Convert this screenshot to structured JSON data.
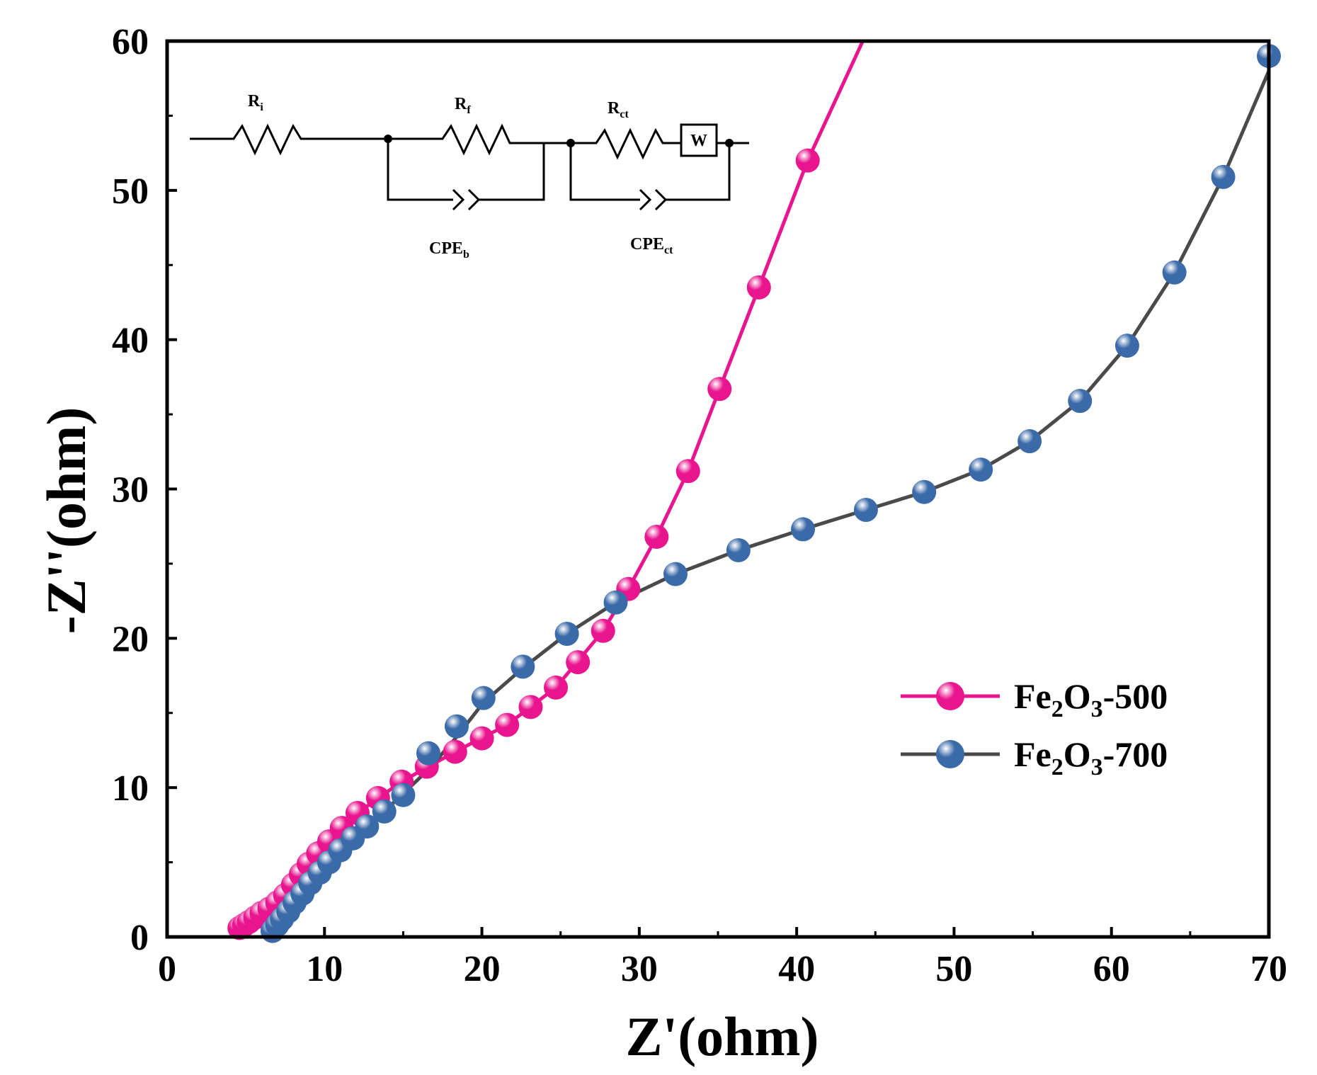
{
  "chart_data": {
    "type": "scatter",
    "title": "",
    "xlabel": "Z'(ohm)",
    "ylabel": "-Z''(ohm)",
    "xlim": [
      0,
      70
    ],
    "ylim": [
      0,
      60
    ],
    "xticks": [
      0,
      10,
      20,
      30,
      40,
      50,
      60,
      70
    ],
    "yticks": [
      0,
      10,
      20,
      30,
      40,
      50,
      60
    ],
    "legend_position": "right-middle",
    "series": [
      {
        "name": "Fe2O3-500",
        "legend_main": "Fe",
        "legend_sub1": "2",
        "legend_mid": "O",
        "legend_sub2": "3",
        "legend_tail": "-500",
        "color": "#e8158f",
        "line_color": "#e8158f",
        "x": [
          4.6,
          4.9,
          5.2,
          5.6,
          6.0,
          6.5,
          7.0,
          7.5,
          8.0,
          8.5,
          9.0,
          9.6,
          10.3,
          11.1,
          12.1,
          13.4,
          14.9,
          16.5,
          18.3,
          20.0,
          21.6,
          23.1,
          24.7,
          26.1,
          27.7,
          29.3,
          31.1,
          33.1,
          35.1,
          37.6,
          40.7
        ],
        "y": [
          0.6,
          0.8,
          1.0,
          1.3,
          1.6,
          1.9,
          2.3,
          2.8,
          3.5,
          4.2,
          4.9,
          5.6,
          6.4,
          7.3,
          8.3,
          9.3,
          10.4,
          11.4,
          12.4,
          13.3,
          14.2,
          15.4,
          16.7,
          18.4,
          20.5,
          23.3,
          26.8,
          31.2,
          36.7,
          43.5,
          52.0
        ],
        "fit_x": [
          4.6,
          5.6,
          7.0,
          8.5,
          10.3,
          12.1,
          14.9,
          18.3,
          21.6,
          24.7,
          27.7,
          29.3,
          31.1,
          33.1,
          35.1,
          37.6,
          40.7,
          44.2
        ],
        "fit_y": [
          0.6,
          1.3,
          2.3,
          4.2,
          6.4,
          8.3,
          10.4,
          12.4,
          14.2,
          16.7,
          20.5,
          23.3,
          26.8,
          31.2,
          36.7,
          43.5,
          52.0,
          60.0
        ]
      },
      {
        "name": "Fe2O3-700",
        "legend_main": "Fe",
        "legend_sub1": "2",
        "legend_mid": "O",
        "legend_sub2": "3",
        "legend_tail": "-700",
        "color": "#3b6aa8",
        "line_color": "#4a4a4a",
        "x": [
          6.7,
          7.0,
          7.3,
          7.7,
          8.1,
          8.6,
          9.1,
          9.7,
          10.3,
          11.0,
          11.8,
          12.7,
          13.8,
          15.0,
          16.6,
          18.4,
          20.1,
          22.6,
          25.4,
          28.5,
          32.3,
          36.3,
          40.4,
          44.4,
          48.1,
          51.7,
          54.8,
          58.0,
          61.0,
          64.0,
          67.1,
          70.0
        ],
        "y": [
          0.4,
          0.8,
          1.2,
          1.7,
          2.3,
          2.9,
          3.6,
          4.3,
          5.0,
          5.8,
          6.6,
          7.4,
          8.4,
          9.5,
          12.3,
          14.1,
          16.0,
          18.1,
          20.3,
          22.4,
          24.3,
          25.9,
          27.3,
          28.6,
          29.8,
          31.3,
          33.2,
          35.9,
          39.6,
          44.5,
          50.9,
          59.0
        ],
        "fit_x": [
          6.7,
          7.7,
          9.1,
          10.3,
          11.8,
          13.8,
          16.6,
          18.4,
          20.1,
          22.6,
          25.4,
          28.5,
          32.3,
          36.3,
          40.4,
          44.4,
          48.1,
          51.7,
          54.8,
          58.0,
          61.0,
          64.0,
          67.1,
          70.0
        ],
        "fit_y": [
          0.4,
          1.7,
          3.6,
          5.0,
          6.6,
          8.4,
          11.2,
          13.4,
          15.7,
          18.0,
          20.3,
          22.4,
          24.3,
          25.9,
          27.3,
          28.6,
          29.8,
          31.3,
          33.2,
          35.9,
          39.6,
          44.5,
          50.9,
          58.0
        ]
      }
    ]
  },
  "circuit": {
    "labels": {
      "ri": "R",
      "ri_sub": "i",
      "rf": "R",
      "rf_sub": "f",
      "rct": "R",
      "rct_sub": "ct",
      "w": "W",
      "cpeb": "CPE",
      "cpeb_sub": "b",
      "cpect": "CPE",
      "cpect_sub": "ct"
    }
  }
}
